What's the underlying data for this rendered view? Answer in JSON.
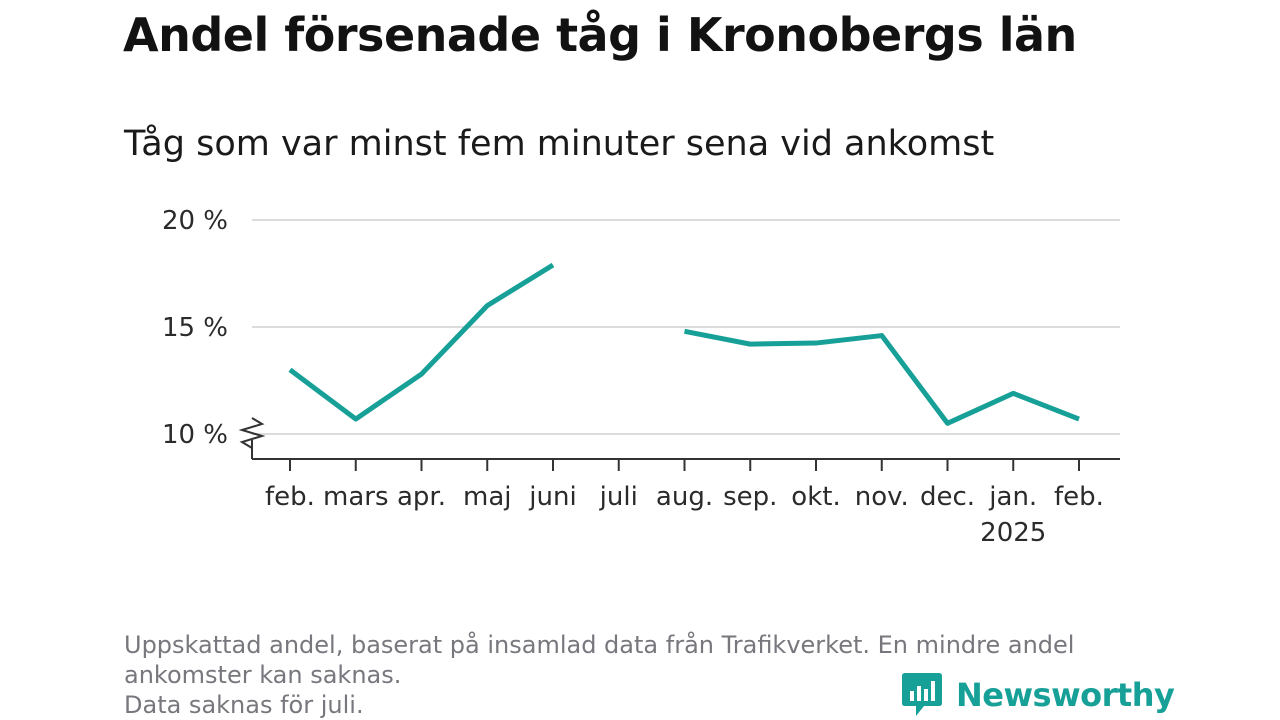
{
  "title": "Andel försenade tåg i Kronobergs län",
  "subtitle": "Tåg som var minst fem minuter sena vid ankomst",
  "footnote": {
    "line1": "Uppskattad andel, baserat på insamlad data från Trafikverket. En mindre andel",
    "line2": "ankomster kan saknas.",
    "line3": "Data saknas för juli."
  },
  "brand": {
    "name": "Newsworthy",
    "icon": "newsworthy-logo-icon"
  },
  "colors": {
    "line": "#17a097",
    "grid": "#dcdcdc",
    "axis": "#333333",
    "brand": "#17a097"
  },
  "chart_data": {
    "type": "line",
    "categories": [
      "feb.",
      "mars",
      "apr.",
      "maj",
      "juni",
      "juli",
      "aug.",
      "sep.",
      "okt.",
      "nov.",
      "dec.",
      "jan.",
      "feb."
    ],
    "year_label": {
      "category_index": 11,
      "text": "2025"
    },
    "series": [
      {
        "values": [
          13.0,
          10.7,
          12.8,
          16.0,
          17.9,
          null,
          14.8,
          14.2,
          14.25,
          14.6,
          10.5,
          11.9,
          10.7
        ]
      }
    ],
    "y_ticks": [
      {
        "value": 10,
        "label": "10 %"
      },
      {
        "value": 15,
        "label": "15 %"
      },
      {
        "value": 20,
        "label": "20 %"
      }
    ],
    "ylim": [
      10,
      20
    ],
    "y_axis_break": true,
    "grid": true,
    "xlabel": "",
    "ylabel": ""
  }
}
